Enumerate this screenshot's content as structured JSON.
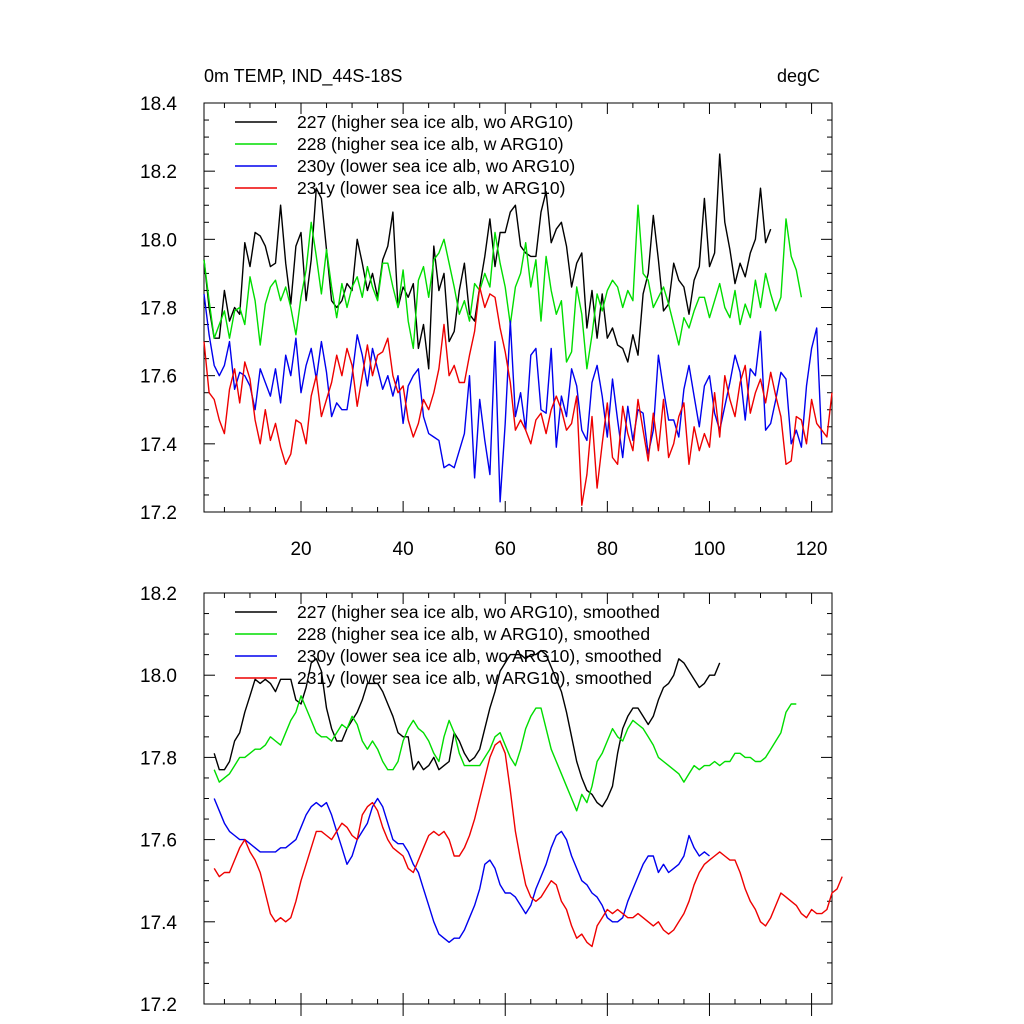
{
  "chart_data": [
    {
      "type": "line",
      "title_left": "0m TEMP, IND_44S-18S",
      "title_right": "degC",
      "xlim": [
        1,
        124
      ],
      "ylim": [
        17.2,
        18.4
      ],
      "yticks": [
        "17.2",
        "17.4",
        "17.6",
        "17.8",
        "18.0",
        "18.2",
        "18.4"
      ],
      "xticks": [
        "20",
        "40",
        "60",
        "80",
        "100",
        "120"
      ],
      "show_xtick_labels": true,
      "series": [
        {
          "name": "227 (higher sea ice alb, wo ARG10)",
          "color": "#000000",
          "x_start": 1,
          "values": [
            17.94,
            17.8,
            17.71,
            17.71,
            17.85,
            17.76,
            17.8,
            17.78,
            17.99,
            17.92,
            18.02,
            18.01,
            17.98,
            17.92,
            17.93,
            18.1,
            17.93,
            17.81,
            17.98,
            18.02,
            17.82,
            17.94,
            18.15,
            18.12,
            17.97,
            17.82,
            17.8,
            17.82,
            17.87,
            17.85,
            18.0,
            17.93,
            17.85,
            17.9,
            17.83,
            17.94,
            17.98,
            18.08,
            17.8,
            17.86,
            17.83,
            17.87,
            17.68,
            17.75,
            17.62,
            17.98,
            17.85,
            17.9,
            17.7,
            17.73,
            17.85,
            17.93,
            17.78,
            17.76,
            17.86,
            17.95,
            18.06,
            17.92,
            18.02,
            18.02,
            18.08,
            18.1,
            17.98,
            17.96,
            17.95,
            17.95,
            18.08,
            18.14,
            17.99,
            18.03,
            18.05,
            17.98,
            17.86,
            17.93,
            17.96,
            17.74,
            17.85,
            17.71,
            17.84,
            17.71,
            17.74,
            17.69,
            17.68,
            17.64,
            17.72,
            17.66,
            17.84,
            17.9,
            18.07,
            17.94,
            17.79,
            17.81,
            17.93,
            17.88,
            17.86,
            17.78,
            17.88,
            17.92,
            18.12,
            17.92,
            17.96,
            18.25,
            18.05,
            17.97,
            17.87,
            17.93,
            17.89,
            17.96,
            18.0,
            18.15,
            17.99,
            18.03
          ]
        },
        {
          "name": "228 (higher sea ice alb, w ARG10)",
          "color": "#00dd00",
          "x_start": 1,
          "values": [
            17.94,
            17.82,
            17.71,
            17.75,
            17.79,
            17.71,
            17.79,
            17.8,
            17.75,
            17.89,
            17.82,
            17.69,
            17.81,
            17.86,
            17.88,
            17.82,
            17.86,
            17.8,
            17.72,
            17.83,
            17.91,
            18.05,
            17.95,
            17.84,
            17.97,
            17.86,
            17.77,
            17.87,
            17.8,
            17.86,
            17.89,
            17.83,
            17.92,
            17.86,
            17.82,
            17.93,
            17.93,
            17.86,
            17.8,
            17.91,
            17.76,
            17.68,
            17.88,
            17.92,
            17.83,
            17.94,
            17.96,
            18.0,
            17.93,
            17.86,
            17.78,
            17.82,
            17.76,
            17.87,
            17.85,
            17.9,
            17.86,
            18.02,
            17.93,
            17.86,
            17.75,
            17.86,
            17.9,
            17.99,
            17.86,
            17.94,
            17.76,
            17.95,
            17.85,
            17.78,
            17.82,
            17.64,
            17.67,
            17.86,
            17.78,
            17.62,
            17.72,
            17.84,
            17.79,
            17.85,
            17.88,
            17.86,
            17.8,
            17.85,
            17.82,
            18.1,
            17.9,
            17.88,
            17.8,
            17.83,
            17.86,
            17.81,
            17.75,
            17.69,
            17.77,
            17.74,
            17.79,
            17.83,
            17.83,
            17.77,
            17.82,
            17.87,
            17.8,
            17.77,
            17.85,
            17.75,
            17.81,
            17.77,
            17.88,
            17.8,
            17.9,
            17.84,
            17.79,
            17.83,
            18.06,
            17.95,
            17.91,
            17.83
          ]
        },
        {
          "name": "230y (lower sea ice alb, wo ARG10)",
          "color": "#0000ee",
          "x_start": 1,
          "values": [
            17.84,
            17.72,
            17.63,
            17.6,
            17.63,
            17.7,
            17.56,
            17.61,
            17.6,
            17.57,
            17.5,
            17.62,
            17.58,
            17.54,
            17.62,
            17.52,
            17.66,
            17.6,
            17.71,
            17.55,
            17.63,
            17.68,
            17.59,
            17.7,
            17.61,
            17.48,
            17.52,
            17.5,
            17.5,
            17.6,
            17.72,
            17.66,
            17.57,
            17.68,
            17.62,
            17.56,
            17.6,
            17.54,
            17.6,
            17.46,
            17.57,
            17.6,
            17.62,
            17.48,
            17.43,
            17.42,
            17.41,
            17.33,
            17.34,
            17.33,
            17.38,
            17.43,
            17.6,
            17.3,
            17.53,
            17.41,
            17.31,
            17.7,
            17.23,
            17.46,
            17.76,
            17.48,
            17.55,
            17.44,
            17.66,
            17.68,
            17.5,
            17.49,
            17.68,
            17.39,
            17.54,
            17.48,
            17.62,
            17.57,
            17.44,
            17.41,
            17.58,
            17.63,
            17.54,
            17.42,
            17.59,
            17.47,
            17.36,
            17.51,
            17.41,
            17.5,
            17.49,
            17.37,
            17.44,
            17.66,
            17.56,
            17.47,
            17.47,
            17.42,
            17.56,
            17.63,
            17.54,
            17.45,
            17.57,
            17.6,
            17.49,
            17.44,
            17.51,
            17.58,
            17.66,
            17.61,
            17.47,
            17.62,
            17.6,
            17.73,
            17.44,
            17.46,
            17.53,
            17.61,
            17.59,
            17.4,
            17.44,
            17.39,
            17.57,
            17.68,
            17.74,
            17.4
          ]
        },
        {
          "name": "231y (lower sea ice alb, w ARG10)",
          "color": "#ee0000",
          "x_start": 1,
          "values": [
            17.7,
            17.55,
            17.53,
            17.47,
            17.43,
            17.56,
            17.62,
            17.52,
            17.64,
            17.59,
            17.47,
            17.4,
            17.5,
            17.41,
            17.46,
            17.39,
            17.34,
            17.37,
            17.47,
            17.46,
            17.4,
            17.54,
            17.6,
            17.48,
            17.53,
            17.58,
            17.66,
            17.6,
            17.68,
            17.63,
            17.51,
            17.6,
            17.69,
            17.6,
            17.66,
            17.67,
            17.71,
            17.6,
            17.55,
            17.57,
            17.47,
            17.42,
            17.46,
            17.53,
            17.5,
            17.55,
            17.62,
            17.75,
            17.6,
            17.63,
            17.58,
            17.58,
            17.66,
            17.73,
            17.86,
            17.8,
            17.84,
            17.83,
            17.74,
            17.67,
            17.58,
            17.44,
            17.47,
            17.44,
            17.4,
            17.47,
            17.49,
            17.43,
            17.5,
            17.54,
            17.5,
            17.44,
            17.46,
            17.54,
            17.22,
            17.31,
            17.48,
            17.27,
            17.4,
            17.52,
            17.36,
            17.34,
            17.51,
            17.43,
            17.38,
            17.53,
            17.44,
            17.35,
            17.49,
            17.38,
            17.53,
            17.36,
            17.4,
            17.48,
            17.52,
            17.34,
            17.45,
            17.38,
            17.43,
            17.39,
            17.55,
            17.42,
            17.6,
            17.53,
            17.48,
            17.58,
            17.63,
            17.49,
            17.55,
            17.59,
            17.52,
            17.61,
            17.54,
            17.48,
            17.34,
            17.35,
            17.48,
            17.47,
            17.4,
            17.53,
            17.46,
            17.44,
            17.42,
            17.55
          ]
        }
      ]
    },
    {
      "type": "line",
      "xlim": [
        1,
        124
      ],
      "ylim": [
        17.2,
        18.2
      ],
      "yticks": [
        "17.2",
        "17.4",
        "17.6",
        "17.8",
        "18.0",
        "18.2"
      ],
      "xticks": [
        "20",
        "40",
        "60",
        "80",
        "100",
        "120"
      ],
      "show_xtick_labels": false,
      "series": [
        {
          "name": "227 (higher sea ice alb, wo ARG10), smoothed",
          "color": "#000000",
          "x_start": 3,
          "values": [
            17.81,
            17.77,
            17.77,
            17.79,
            17.84,
            17.86,
            17.91,
            17.95,
            17.99,
            17.98,
            17.99,
            17.98,
            17.96,
            17.99,
            17.99,
            17.99,
            17.94,
            17.93,
            17.97,
            18.03,
            18.04,
            18.01,
            17.92,
            17.87,
            17.84,
            17.84,
            17.87,
            17.89,
            17.91,
            17.94,
            17.98,
            17.98,
            17.98,
            17.96,
            17.93,
            17.9,
            17.86,
            17.85,
            17.85,
            17.77,
            17.79,
            17.77,
            17.78,
            17.8,
            17.77,
            17.78,
            17.79,
            17.86,
            17.84,
            17.81,
            17.79,
            17.8,
            17.82,
            17.87,
            17.92,
            17.96,
            18.01,
            18.03,
            18.05,
            18.05,
            18.05,
            18.04,
            18.05,
            18.05,
            18.06,
            18.05,
            18.02,
            17.99,
            17.96,
            17.91,
            17.85,
            17.79,
            17.75,
            17.72,
            17.71,
            17.69,
            17.68,
            17.7,
            17.73,
            17.81,
            17.87,
            17.9,
            17.92,
            17.92,
            17.9,
            17.88,
            17.9,
            17.94,
            17.97,
            17.98,
            18.0,
            18.04,
            18.03,
            18.01,
            17.99,
            17.97,
            17.98,
            18.0,
            18.0,
            18.03
          ]
        },
        {
          "name": "228 (higher sea ice alb, w ARG10), smoothed",
          "color": "#00dd00",
          "x_start": 3,
          "values": [
            17.77,
            17.74,
            17.75,
            17.76,
            17.78,
            17.8,
            17.8,
            17.81,
            17.82,
            17.82,
            17.83,
            17.85,
            17.84,
            17.83,
            17.86,
            17.89,
            17.91,
            17.95,
            17.92,
            17.89,
            17.86,
            17.85,
            17.85,
            17.84,
            17.86,
            17.88,
            17.87,
            17.9,
            17.88,
            17.84,
            17.82,
            17.84,
            17.82,
            17.79,
            17.77,
            17.77,
            17.79,
            17.84,
            17.87,
            17.89,
            17.87,
            17.86,
            17.84,
            17.81,
            17.79,
            17.85,
            17.89,
            17.86,
            17.81,
            17.78,
            17.78,
            17.78,
            17.78,
            17.8,
            17.82,
            17.85,
            17.86,
            17.83,
            17.8,
            17.78,
            17.82,
            17.87,
            17.9,
            17.92,
            17.92,
            17.87,
            17.82,
            17.79,
            17.76,
            17.73,
            17.7,
            17.67,
            17.71,
            17.69,
            17.73,
            17.79,
            17.81,
            17.84,
            17.87,
            17.85,
            17.84,
            17.87,
            17.89,
            17.88,
            17.87,
            17.85,
            17.83,
            17.8,
            17.79,
            17.78,
            17.77,
            17.76,
            17.74,
            17.76,
            17.78,
            17.77,
            17.78,
            17.78,
            17.79,
            17.78,
            17.79,
            17.79,
            17.81,
            17.81,
            17.8,
            17.8,
            17.79,
            17.79,
            17.8,
            17.82,
            17.84,
            17.86,
            17.91,
            17.93,
            17.93
          ]
        },
        {
          "name": "230y (lower sea ice alb, wo ARG10), smoothed",
          "color": "#0000ee",
          "x_start": 3,
          "values": [
            17.7,
            17.67,
            17.64,
            17.62,
            17.61,
            17.6,
            17.6,
            17.59,
            17.58,
            17.57,
            17.57,
            17.57,
            17.57,
            17.58,
            17.58,
            17.59,
            17.6,
            17.63,
            17.66,
            17.68,
            17.69,
            17.68,
            17.69,
            17.66,
            17.62,
            17.58,
            17.54,
            17.56,
            17.6,
            17.62,
            17.64,
            17.68,
            17.7,
            17.68,
            17.64,
            17.6,
            17.59,
            17.59,
            17.57,
            17.54,
            17.52,
            17.48,
            17.44,
            17.4,
            17.37,
            17.36,
            17.35,
            17.36,
            17.36,
            17.38,
            17.41,
            17.44,
            17.48,
            17.54,
            17.55,
            17.53,
            17.49,
            17.47,
            17.47,
            17.46,
            17.44,
            17.42,
            17.44,
            17.48,
            17.51,
            17.54,
            17.58,
            17.61,
            17.62,
            17.6,
            17.56,
            17.53,
            17.5,
            17.49,
            17.47,
            17.46,
            17.44,
            17.41,
            17.4,
            17.4,
            17.41,
            17.45,
            17.48,
            17.51,
            17.54,
            17.56,
            17.56,
            17.52,
            17.54,
            17.52,
            17.53,
            17.54,
            17.56,
            17.61,
            17.58,
            17.56,
            17.57,
            17.56
          ]
        },
        {
          "name": "231y (lower sea ice alb, w ARG10), smoothed",
          "color": "#ee0000",
          "x_start": 3,
          "values": [
            17.53,
            17.51,
            17.52,
            17.52,
            17.55,
            17.58,
            17.6,
            17.57,
            17.55,
            17.52,
            17.47,
            17.42,
            17.4,
            17.41,
            17.4,
            17.41,
            17.45,
            17.5,
            17.54,
            17.58,
            17.62,
            17.62,
            17.61,
            17.6,
            17.62,
            17.64,
            17.63,
            17.61,
            17.6,
            17.66,
            17.68,
            17.69,
            17.67,
            17.63,
            17.6,
            17.58,
            17.57,
            17.56,
            17.53,
            17.52,
            17.55,
            17.58,
            17.61,
            17.62,
            17.61,
            17.62,
            17.6,
            17.56,
            17.56,
            17.58,
            17.61,
            17.65,
            17.7,
            17.75,
            17.8,
            17.83,
            17.84,
            17.81,
            17.72,
            17.62,
            17.55,
            17.49,
            17.46,
            17.45,
            17.46,
            17.48,
            17.5,
            17.49,
            17.45,
            17.43,
            17.39,
            17.36,
            17.37,
            17.35,
            17.34,
            17.39,
            17.41,
            17.43,
            17.42,
            17.43,
            17.42,
            17.41,
            17.41,
            17.42,
            17.41,
            17.4,
            17.39,
            17.4,
            17.38,
            17.37,
            17.38,
            17.4,
            17.42,
            17.45,
            17.49,
            17.52,
            17.54,
            17.55,
            17.56,
            17.57,
            17.56,
            17.55,
            17.55,
            17.52,
            17.48,
            17.45,
            17.43,
            17.4,
            17.39,
            17.41,
            17.44,
            17.47,
            17.46,
            17.45,
            17.44,
            17.42,
            17.41,
            17.43,
            17.42,
            17.42,
            17.43,
            17.47,
            17.48,
            17.51
          ]
        }
      ]
    }
  ]
}
